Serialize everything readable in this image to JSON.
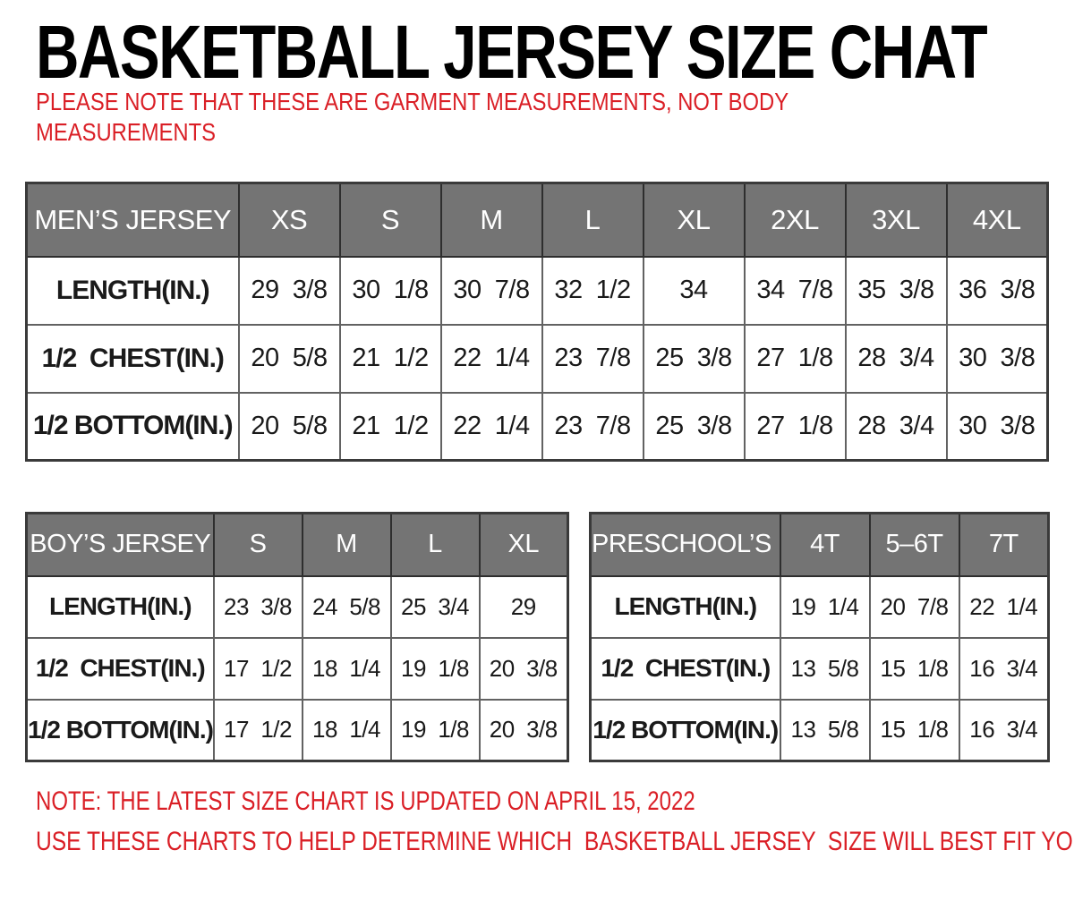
{
  "title": "BASKETBALL JERSEY SIZE CHAT",
  "top_note": {
    "line1": "PLEASE NOTE THAT THESE ARE GARMENT MEASUREMENTS, NOT BODY",
    "line2": "MEASUREMENTS"
  },
  "bottom_notes": {
    "line1": "NOTE: THE LATEST SIZE CHART IS UPDATED ON APRIL 15, 2022",
    "line2": "USE THESE CHARTS TO HELP DETERMINE WHICH  BASKETBALL JERSEY  SIZE WILL BEST FIT YOU."
  },
  "colors": {
    "accent_red": "#da1f26",
    "header_gray": "#747474",
    "header_text": "#ffffff",
    "border_dark": "#3a3a3a",
    "border_inner": "#626262",
    "text_black": "#1a1a1a"
  },
  "chart_data": [
    {
      "type": "table",
      "name": "mens_jersey_size_chart",
      "corner_label": "MEN’S JERSEY",
      "columns": [
        "XS",
        "S",
        "M",
        "L",
        "XL",
        "2XL",
        "3XL",
        "4XL"
      ],
      "rows": [
        {
          "label": "LENGTH(IN.)",
          "values": [
            "29  3/8",
            "30  1/8",
            "30  7/8",
            "32  1/2",
            "34",
            "34  7/8",
            "35  3/8",
            "36  3/8"
          ]
        },
        {
          "label": "1/2  CHEST(IN.)",
          "values": [
            "20  5/8",
            "21  1/2",
            "22  1/4",
            "23  7/8",
            "25  3/8",
            "27  1/8",
            "28  3/4",
            "30  3/8"
          ]
        },
        {
          "label": "1/2 BOTTOM(IN.)",
          "values": [
            "20  5/8",
            "21  1/2",
            "22  1/4",
            "23  7/8",
            "25  3/8",
            "27  1/8",
            "28  3/4",
            "30  3/8"
          ]
        }
      ]
    },
    {
      "type": "table",
      "name": "boys_jersey_size_chart",
      "corner_label": "BOY’S JERSEY",
      "columns": [
        "S",
        "M",
        "L",
        "XL"
      ],
      "rows": [
        {
          "label": "LENGTH(IN.)",
          "values": [
            "23  3/8",
            "24  5/8",
            "25  3/4",
            "29"
          ]
        },
        {
          "label": "1/2  CHEST(IN.)",
          "values": [
            "17  1/2",
            "18  1/4",
            "19  1/8",
            "20  3/8"
          ]
        },
        {
          "label": "1/2 BOTTOM(IN.)",
          "values": [
            "17  1/2",
            "18  1/4",
            "19  1/8",
            "20  3/8"
          ]
        }
      ]
    },
    {
      "type": "table",
      "name": "preschools_jersey_size_chart",
      "corner_label": "PRESCHOOL’S  JERSEY",
      "columns": [
        "4T",
        "5–6T",
        "7T"
      ],
      "rows": [
        {
          "label": "LENGTH(IN.)",
          "values": [
            "19  1/4",
            "20  7/8",
            "22  1/4"
          ]
        },
        {
          "label": "1/2  CHEST(IN.)",
          "values": [
            "13  5/8",
            "15  1/8",
            "16  3/4"
          ]
        },
        {
          "label": "1/2 BOTTOM(IN.)",
          "values": [
            "13  5/8",
            "15  1/8",
            "16  3/4"
          ]
        }
      ]
    }
  ]
}
